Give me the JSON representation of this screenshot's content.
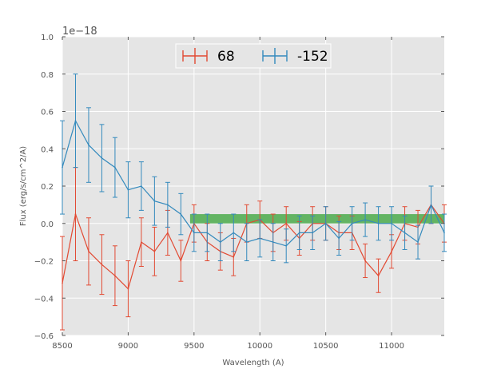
{
  "chart_data": {
    "type": "line",
    "title": "",
    "xlabel": "Wavelength (A)",
    "ylabel": "Flux (erg/s/cm^2/A)",
    "offset_text": "1e−18",
    "xlim": [
      8500,
      11400
    ],
    "ylim": [
      -0.6,
      1.0
    ],
    "xticks": [
      8500,
      9000,
      9500,
      10000,
      10500,
      11000
    ],
    "xtick_labels": [
      "8500",
      "9000",
      "9500",
      "10000",
      "10500",
      "11000"
    ],
    "yticks": [
      -0.6,
      -0.4,
      -0.2,
      0.0,
      0.2,
      0.4,
      0.6,
      0.8,
      1.0
    ],
    "ytick_labels": [
      "−0.6",
      "−0.4",
      "−0.2",
      "0.0",
      "0.2",
      "0.4",
      "0.6",
      "0.8",
      "1.0"
    ],
    "grid": true,
    "legend_position": "top-center",
    "band": {
      "x_start": 9470,
      "x_end": 11400,
      "y_low": 0.0,
      "y_high": 0.05,
      "color": "#2ca02c"
    },
    "series": [
      {
        "name": "68",
        "color": "#e24a33",
        "x": [
          8500,
          8600,
          8700,
          8800,
          8900,
          9000,
          9100,
          9200,
          9300,
          9400,
          9500,
          9600,
          9700,
          9800,
          9900,
          10000,
          10100,
          10200,
          10300,
          10400,
          10500,
          10600,
          10700,
          10800,
          10900,
          11000,
          11100,
          11200,
          11300,
          11400
        ],
        "values": [
          -0.32,
          0.05,
          -0.15,
          -0.22,
          -0.28,
          -0.35,
          -0.1,
          -0.15,
          -0.05,
          -0.2,
          0.0,
          -0.1,
          -0.15,
          -0.18,
          0.0,
          0.02,
          -0.05,
          0.0,
          -0.08,
          0.0,
          0.0,
          -0.05,
          -0.05,
          -0.2,
          -0.28,
          -0.15,
          0.0,
          -0.02,
          0.1,
          0.0
        ],
        "errors": [
          0.25,
          0.25,
          0.18,
          0.16,
          0.16,
          0.15,
          0.13,
          0.13,
          0.12,
          0.11,
          0.1,
          0.1,
          0.1,
          0.1,
          0.1,
          0.1,
          0.1,
          0.09,
          0.09,
          0.09,
          0.09,
          0.09,
          0.09,
          0.09,
          0.09,
          0.09,
          0.09,
          0.09,
          0.1,
          0.1
        ]
      },
      {
        "name": "-152",
        "color": "#348abd",
        "x": [
          8500,
          8600,
          8700,
          8800,
          8900,
          9000,
          9100,
          9200,
          9300,
          9400,
          9500,
          9600,
          9700,
          9800,
          9900,
          10000,
          10100,
          10200,
          10300,
          10400,
          10500,
          10600,
          10700,
          10800,
          10900,
          11000,
          11100,
          11200,
          11300,
          11400
        ],
        "values": [
          0.3,
          0.55,
          0.42,
          0.35,
          0.3,
          0.18,
          0.2,
          0.12,
          0.1,
          0.05,
          -0.05,
          -0.05,
          -0.1,
          -0.05,
          -0.1,
          -0.08,
          -0.1,
          -0.12,
          -0.05,
          -0.05,
          0.0,
          -0.08,
          0.0,
          0.02,
          0.0,
          0.0,
          -0.05,
          -0.1,
          0.1,
          -0.05
        ],
        "errors": [
          0.25,
          0.25,
          0.2,
          0.18,
          0.16,
          0.15,
          0.13,
          0.13,
          0.12,
          0.11,
          0.1,
          0.1,
          0.1,
          0.1,
          0.1,
          0.1,
          0.1,
          0.09,
          0.09,
          0.09,
          0.09,
          0.09,
          0.09,
          0.09,
          0.09,
          0.09,
          0.09,
          0.09,
          0.1,
          0.1
        ]
      }
    ]
  }
}
